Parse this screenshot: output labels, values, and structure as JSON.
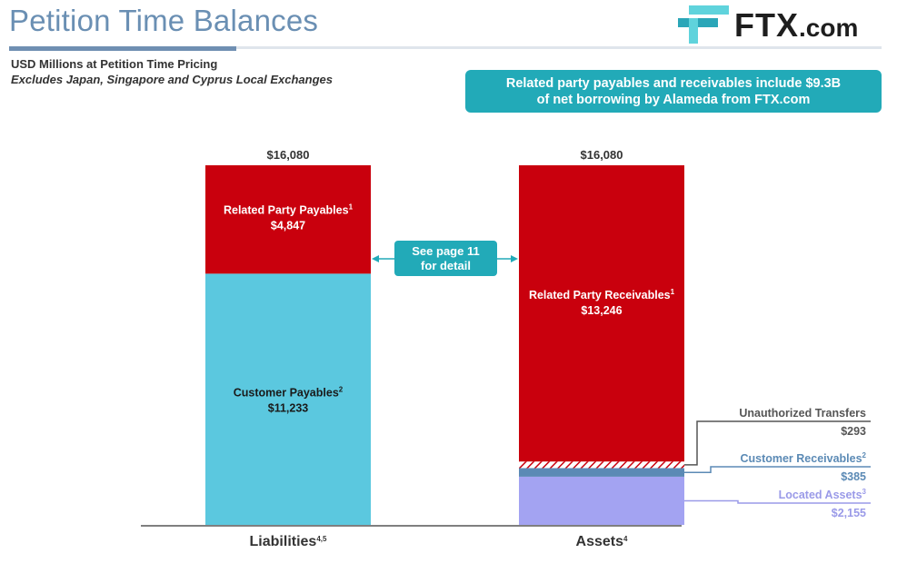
{
  "title": "Petition Time Balances",
  "logo": {
    "text": "FTX",
    "suffix": ".com"
  },
  "subtitle": "USD Millions at Petition Time Pricing",
  "note": "Excludes Japan, Singapore and Cyprus Local Exchanges",
  "callout": {
    "line1": "Related party payables and receivables include $9.3B",
    "line2": "of net borrowing by Alameda from FTX.com"
  },
  "see_page": {
    "line1": "See page 11",
    "line2": "for detail"
  },
  "colors": {
    "red": "#c9000d",
    "teal": "#5bc8df",
    "purple": "#a3a3f2",
    "steel": "#5b8ab5",
    "callout": "#22aab8"
  },
  "chart_data": {
    "type": "bar",
    "stacked": true,
    "categories": [
      "Liabilities",
      "Assets"
    ],
    "category_superscripts": [
      "4,5",
      "4"
    ],
    "totals": [
      "$16,080",
      "$16,080"
    ],
    "ylim": [
      0,
      16080
    ],
    "bars": [
      {
        "category": "Liabilities",
        "segments": [
          {
            "name": "Customer Payables",
            "sup": "2",
            "value": 11233,
            "label": "$11,233",
            "color": "#5bc8df",
            "text_color": "#1a1a1a"
          },
          {
            "name": "Related Party Payables",
            "sup": "1",
            "value": 4847,
            "label": "$4,847",
            "color": "#c9000d",
            "text_color": "#ffffff"
          }
        ]
      },
      {
        "category": "Assets",
        "segments": [
          {
            "name": "Located Assets",
            "sup": "3",
            "value": 2155,
            "label": "$2,155",
            "color": "#a3a3f2",
            "label_color": "#9a9ae8"
          },
          {
            "name": "Customer Receivables",
            "sup": "2",
            "value": 385,
            "label": "$385",
            "color": "#5b8ab5",
            "label_color": "#5b8ab5"
          },
          {
            "name": "Unauthorized Transfers",
            "value": 293,
            "label": "$293",
            "color": "#c9000d",
            "hatched": true,
            "label_color": "#555555"
          },
          {
            "name": "Related Party Receivables",
            "sup": "1",
            "value": 13246,
            "label": "$13,246",
            "color": "#c9000d",
            "text_color": "#ffffff"
          }
        ]
      }
    ]
  }
}
